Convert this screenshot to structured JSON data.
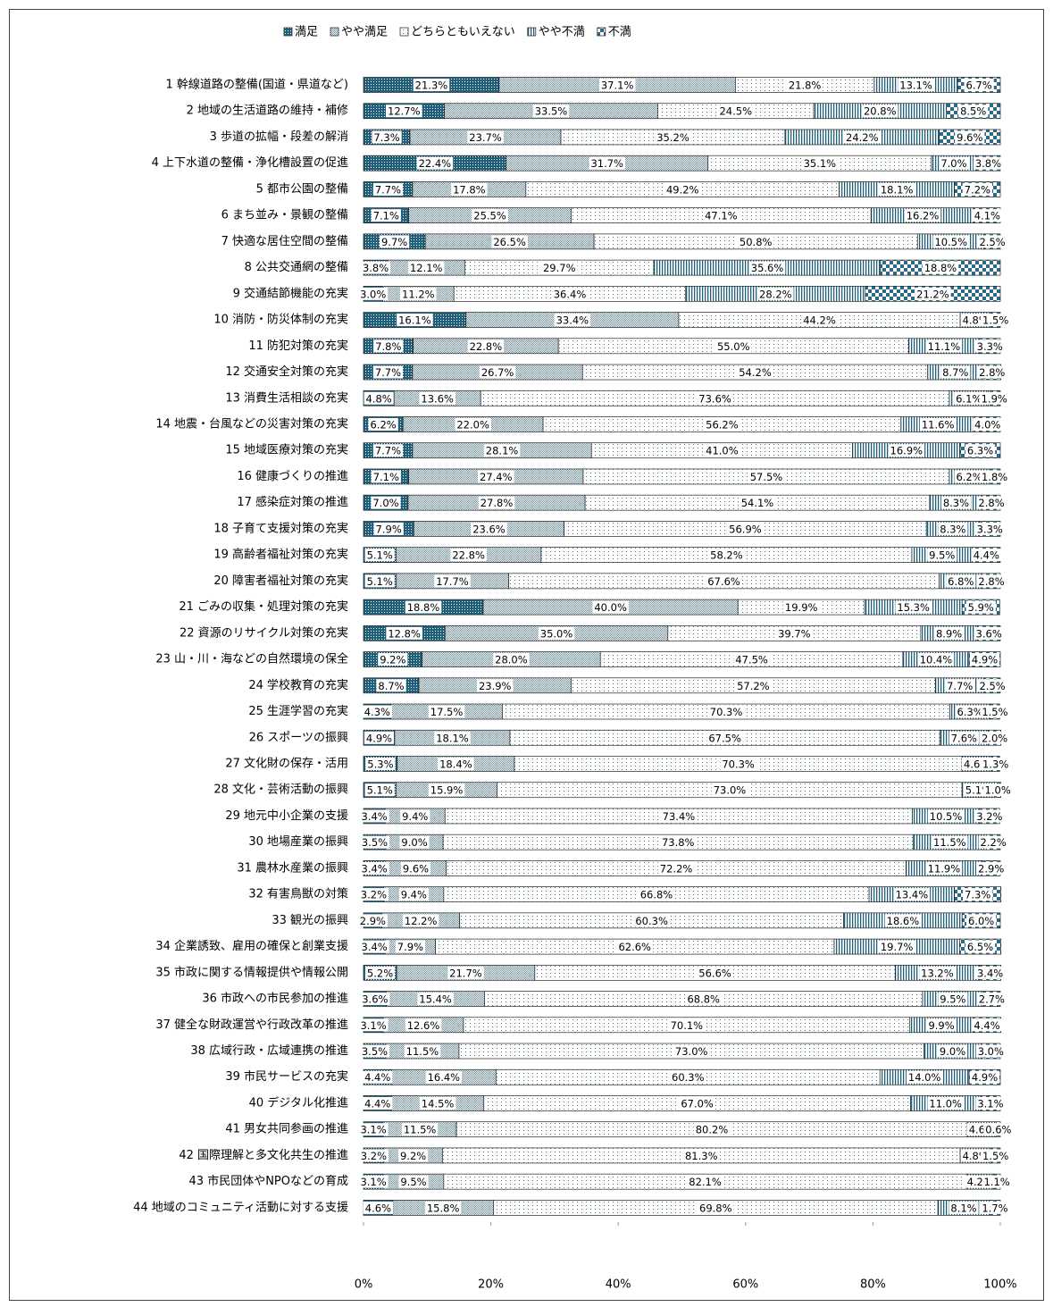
{
  "chart_data": {
    "type": "stacked-bar-horizontal",
    "categories": [
      "1 幹線道路の整備(国道・県道など)",
      "2 地域の生活道路の維持・補修",
      "3 歩道の拡幅・段差の解消",
      "4 上下水道の整備・浄化槽設置の促進",
      "5 都市公園の整備",
      "6 まち並み・景観の整備",
      "7 快適な居住空間の整備",
      "8 公共交通網の整備",
      "9 交通結節機能の充実",
      "10 消防・防災体制の充実",
      "11 防犯対策の充実",
      "12 交通安全対策の充実",
      "13 消費生活相談の充実",
      "14 地震・台風などの災害対策の充実",
      "15 地域医療対策の充実",
      "16 健康づくりの推進",
      "17 感染症対策の推進",
      "18 子育て支援対策の充実",
      "19 高齢者福祉対策の充実",
      "20 障害者福祉対策の充実",
      "21 ごみの収集・処理対策の充実",
      "22 資源のリサイクル対策の充実",
      "23 山・川・海などの自然環境の保全",
      "24 学校教育の充実",
      "25 生涯学習の充実",
      "26 スポーツの振興",
      "27 文化財の保存・活用",
      "28 文化・芸術活動の振興",
      "29 地元中小企業の支援",
      "30 地場産業の振興",
      "31 農林水産業の振興",
      "32 有害鳥獣の対策",
      "33 観光の振興",
      "34 企業誘致、雇用の確保と創業支援",
      "35 市政に関する情報提供や情報公開",
      "36 市政への市民参加の推進",
      "37 健全な財政運営や行政改革の推進",
      "38 広域行政・広域連携の推進",
      "39 市民サービスの充実",
      "40 デジタル化推進",
      "41 男女共同参画の推進",
      "42 国際理解と多文化共生の推進",
      "43 市民団体やNPOなどの育成",
      "44 地域のコミュニティ活動に対する支援"
    ],
    "series": [
      {
        "name": "満足",
        "color": "#1f5f7a",
        "values": [
          21.3,
          12.7,
          7.3,
          22.4,
          7.7,
          7.1,
          9.7,
          3.8,
          3.0,
          16.1,
          7.8,
          7.7,
          4.8,
          6.2,
          7.7,
          7.1,
          7.0,
          7.9,
          5.1,
          5.1,
          18.8,
          12.8,
          9.2,
          8.7,
          4.3,
          4.9,
          5.3,
          5.1,
          3.4,
          3.5,
          3.4,
          3.2,
          2.9,
          3.4,
          5.2,
          3.6,
          3.1,
          3.5,
          4.4,
          4.4,
          3.1,
          3.2,
          3.1,
          4.6
        ],
        "value_labels": [
          "21.3%",
          "12.7%",
          "7.3%",
          "22.4%",
          "7.7%",
          "7.1%",
          "9.7%",
          "3.8%",
          "3.0%",
          "16.1%",
          "7.8%",
          "7.7%",
          "4.8%",
          "6.2%",
          "7.7%",
          "7.1%",
          "7.0%",
          "7.9%",
          "5.1%",
          "5.1%",
          "18.8%",
          "12.8%",
          "9.2%",
          "8.7%",
          "4.3%",
          "4.9%",
          "5.3%",
          "5.1%",
          "3.4%",
          "3.5%",
          "3.4%",
          "3.2%",
          "2.9%",
          "3.4%",
          "5.2%",
          "3.6%",
          "3.1%",
          "3.5%",
          "4.4%",
          "4.4%",
          "3.1%",
          "3.2%",
          "3.1%",
          "4.6%"
        ]
      },
      {
        "name": "やや満足",
        "color": "#6f8f9d",
        "values": [
          37.1,
          33.5,
          23.7,
          31.7,
          17.8,
          25.5,
          26.5,
          12.1,
          11.2,
          33.4,
          22.8,
          26.7,
          13.6,
          22.0,
          28.1,
          27.4,
          27.8,
          23.6,
          22.8,
          17.7,
          40.0,
          35.0,
          28.0,
          23.9,
          17.5,
          18.1,
          18.4,
          15.9,
          9.4,
          9.0,
          9.6,
          9.4,
          12.2,
          7.9,
          21.7,
          15.4,
          12.6,
          11.5,
          16.4,
          14.5,
          11.5,
          9.2,
          9.5,
          15.8
        ],
        "value_labels": [
          "37.1%",
          "33.5%",
          "23.7%",
          "31.7%",
          "17.8%",
          "25.5%",
          "26.5%",
          "12.1%",
          "11.2%",
          "33.4%",
          "22.8%",
          "26.7%",
          "13.6%",
          "22.0%",
          "28.1%",
          "27.4%",
          "27.8%",
          "23.6%",
          "22.8%",
          "17.7%",
          "40.0%",
          "35.0%",
          "28.0%",
          "23.9%",
          "17.5%",
          "18.1%",
          "18.4%",
          "15.9%",
          "9.4%",
          "9.0%",
          "9.6%",
          "9.4%",
          "12.2%",
          "7.9%",
          "21.7%",
          "15.4%",
          "12.6%",
          "11.5%",
          "16.4%",
          "14.5%",
          "11.5%",
          "9.2%",
          "9.5%",
          "15.8%"
        ]
      },
      {
        "name": "どちらともいえない",
        "color": "#4e7384",
        "values": [
          21.8,
          24.5,
          35.2,
          35.1,
          49.2,
          47.1,
          50.8,
          29.7,
          36.4,
          44.2,
          55.0,
          54.2,
          73.6,
          56.2,
          41.0,
          57.5,
          54.1,
          56.9,
          58.2,
          67.6,
          19.9,
          39.7,
          47.5,
          57.2,
          70.3,
          67.5,
          70.3,
          73.0,
          73.4,
          73.8,
          72.2,
          66.8,
          60.3,
          62.6,
          56.6,
          68.8,
          70.1,
          73.0,
          60.3,
          67.0,
          80.2,
          81.3,
          82.1,
          69.8
        ],
        "value_labels": [
          "21.8%",
          "24.5%",
          "35.2%",
          "35.1%",
          "49.2%",
          "47.1%",
          "50.8%",
          "29.7%",
          "36.4%",
          "44.2%",
          "55.0%",
          "54.2%",
          "73.6%",
          "56.2%",
          "41.0%",
          "57.5%",
          "54.1%",
          "56.9%",
          "58.2%",
          "67.6%",
          "19.9%",
          "39.7%",
          "47.5%",
          "57.2%",
          "70.3%",
          "67.5%",
          "70.3%",
          "73.0%",
          "73.4%",
          "73.8%",
          "72.2%",
          "66.8%",
          "60.3%",
          "62.6%",
          "56.6%",
          "68.8%",
          "70.1%",
          "73.0%",
          "60.3%",
          "67.0%",
          "80.2%",
          "81.3%",
          "82.1%",
          "69.8%"
        ]
      },
      {
        "name": "やや不満",
        "color": "#1f5f7a",
        "values": [
          13.1,
          20.8,
          24.2,
          7.0,
          18.1,
          16.2,
          10.5,
          35.6,
          28.2,
          4.8,
          11.1,
          8.7,
          6.1,
          11.6,
          16.9,
          6.2,
          8.3,
          8.3,
          9.5,
          6.8,
          15.3,
          8.9,
          10.4,
          7.7,
          6.3,
          7.6,
          4.6,
          5.1,
          10.5,
          11.5,
          11.9,
          13.4,
          18.6,
          19.7,
          13.2,
          9.5,
          9.9,
          9.0,
          14.0,
          11.0,
          4.6,
          4.8,
          4.2,
          8.1
        ],
        "value_labels": [
          "13.1%",
          "20.8%",
          "24.2%",
          "7.0%",
          "18.1%",
          "16.2%",
          "10.5%",
          "35.6%",
          "28.2%",
          "4.8%",
          "11.1%",
          "8.7%",
          "6.1%",
          "11.6%",
          "16.9%",
          "6.2%",
          "8.3%",
          "8.3%",
          "9.5%",
          "6.8%",
          "15.3%",
          "8.9%",
          "10.4%",
          "7.7%",
          "6.3%",
          "7.6%",
          "4.6%",
          "5.1%",
          "10.5%",
          "11.5%",
          "11.9%",
          "13.4%",
          "18.6%",
          "19.7%",
          "13.2%",
          "9.5%",
          "9.9%",
          "9.0%",
          "14.0%",
          "11.0%",
          "4.6%",
          "4.8%",
          "4.2%",
          "8.1%"
        ]
      },
      {
        "name": "不満",
        "color": "#2a6a88",
        "values": [
          6.7,
          8.5,
          9.6,
          3.8,
          7.2,
          4.1,
          2.5,
          18.8,
          21.2,
          1.5,
          3.3,
          2.8,
          1.9,
          4.0,
          6.3,
          1.8,
          2.8,
          3.3,
          4.4,
          2.8,
          5.9,
          3.6,
          4.9,
          2.5,
          1.5,
          2.0,
          1.3,
          1.0,
          3.2,
          2.2,
          2.9,
          7.3,
          6.0,
          6.5,
          3.4,
          2.7,
          4.4,
          3.0,
          4.9,
          3.1,
          0.6,
          1.5,
          1.1,
          1.7
        ],
        "value_labels": [
          "6.7%",
          "8.5%",
          "9.6%",
          "3.8%",
          "7.2%",
          "4.1%",
          "2.5%",
          "18.8%",
          "21.2%",
          "1.5%",
          "3.3%",
          "2.8%",
          "1.9%",
          "4.0%",
          "6.3%",
          "1.8%",
          "2.8%",
          "3.3%",
          "4.4%",
          "2.8%",
          "5.9%",
          "3.6%",
          "4.9%",
          "2.5%",
          "1.5%",
          "2.0%",
          "1.3%",
          "1.0%",
          "3.2%",
          "2.2%",
          "2.9%",
          "7.3%",
          "6.0%",
          "6.5%",
          "3.4%",
          "2.7%",
          "4.4%",
          "3.0%",
          "4.9%",
          "3.1%",
          "0.6%",
          "1.5%",
          "1.1%",
          "1.7%"
        ]
      }
    ],
    "xlim": [
      0,
      100
    ],
    "xticks": [
      {
        "value": 0,
        "label": "0%"
      },
      {
        "value": 20,
        "label": "20%"
      },
      {
        "value": 40,
        "label": "40%"
      },
      {
        "value": 60,
        "label": "60%"
      },
      {
        "value": 80,
        "label": "80%"
      },
      {
        "value": 100,
        "label": "100%"
      }
    ],
    "legend": "top"
  }
}
